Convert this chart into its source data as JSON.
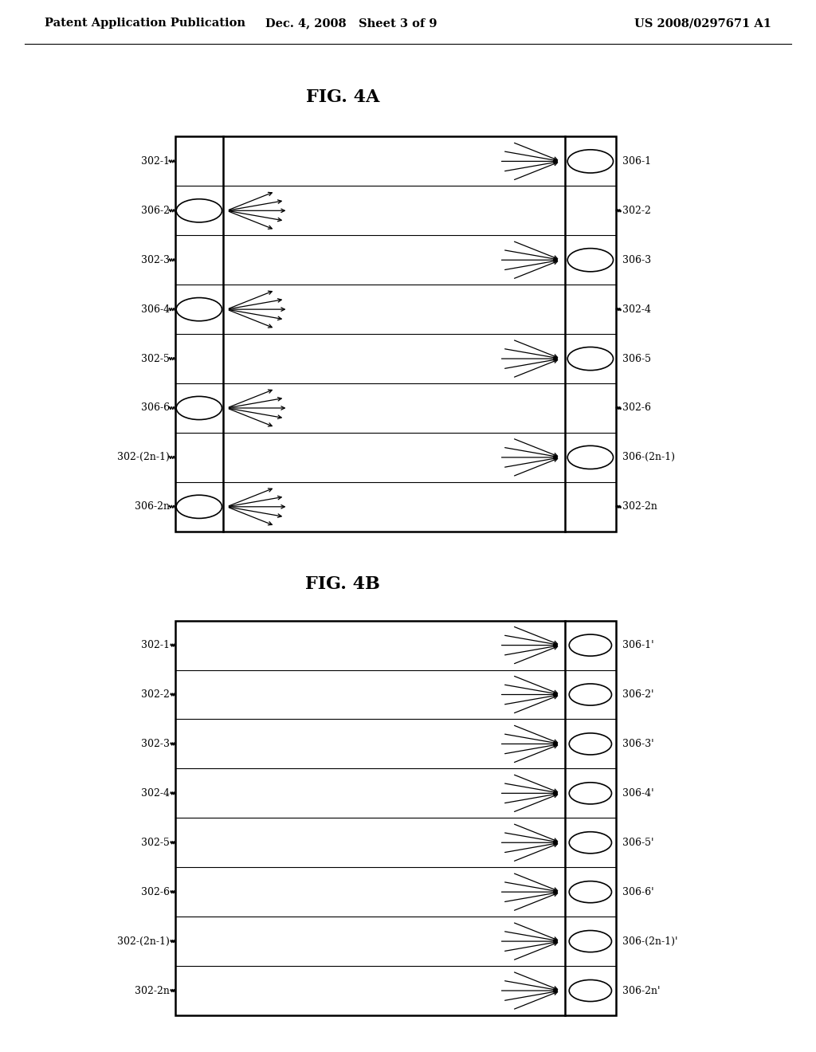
{
  "header_left": "Patent Application Publication",
  "header_mid": "Dec. 4, 2008   Sheet 3 of 9",
  "header_right": "US 2008/0297671 A1",
  "fig4a_title": "FIG. 4A",
  "fig4b_title": "FIG. 4B",
  "background_color": "#ffffff",
  "text_color": "#000000",
  "fig4a_rows": [
    {
      "label_left": "302-1",
      "label_right": "306-1",
      "side": "right"
    },
    {
      "label_left": "306-2",
      "label_right": "302-2",
      "side": "left"
    },
    {
      "label_left": "302-3",
      "label_right": "306-3",
      "side": "right"
    },
    {
      "label_left": "306-4",
      "label_right": "302-4",
      "side": "left"
    },
    {
      "label_left": "302-5",
      "label_right": "306-5",
      "side": "right"
    },
    {
      "label_left": "306-6",
      "label_right": "302-6",
      "side": "left"
    },
    {
      "label_left": "302-(2n-1)",
      "label_right": "306-(2n-1)",
      "side": "right"
    },
    {
      "label_left": "306-2n",
      "label_right": "302-2n",
      "side": "left"
    }
  ],
  "fig4b_rows": [
    {
      "label_left": "302-1",
      "label_right": "306-1'"
    },
    {
      "label_left": "302-2",
      "label_right": "306-2'"
    },
    {
      "label_left": "302-3",
      "label_right": "306-3'"
    },
    {
      "label_left": "302-4",
      "label_right": "306-4'"
    },
    {
      "label_left": "302-5",
      "label_right": "306-5'"
    },
    {
      "label_left": "302-6",
      "label_right": "306-6'"
    },
    {
      "label_left": "302-(2n-1)",
      "label_right": "306-(2n-1)'"
    },
    {
      "label_left": "302-2n",
      "label_right": "306-2n'"
    }
  ]
}
